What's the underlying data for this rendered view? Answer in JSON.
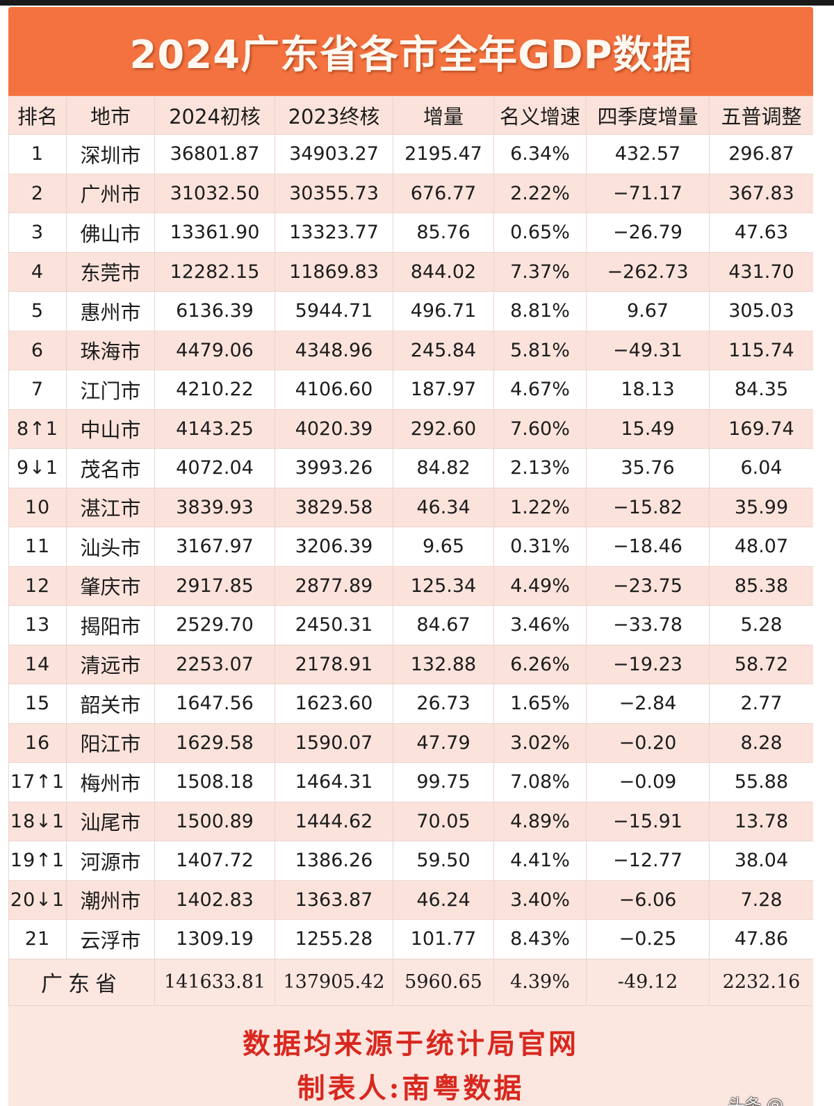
{
  "title": "2024广东省各市全年GDP数据",
  "columns": [
    "排名",
    "地市",
    "2024初核",
    "2023终核",
    "增量",
    "名义增速",
    "四季度增量",
    "五普调整"
  ],
  "rows": [
    {
      "rank": "1",
      "city": "深圳市",
      "gdp2024": "36801.87",
      "gdp2023": "34903.27",
      "increase": "2195.47",
      "growth": "6.34%",
      "q4_increase": "432.57",
      "census_adjust": "296.87"
    },
    {
      "rank": "2",
      "city": "广州市",
      "gdp2024": "31032.50",
      "gdp2023": "30355.73",
      "increase": "676.77",
      "growth": "2.22%",
      "q4_increase": "−71.17",
      "census_adjust": "367.83"
    },
    {
      "rank": "3",
      "city": "佛山市",
      "gdp2024": "13361.90",
      "gdp2023": "13323.77",
      "increase": "85.76",
      "growth": "0.65%",
      "q4_increase": "−26.79",
      "census_adjust": "47.63"
    },
    {
      "rank": "4",
      "city": "东莞市",
      "gdp2024": "12282.15",
      "gdp2023": "11869.83",
      "increase": "844.02",
      "growth": "7.37%",
      "q4_increase": "−262.73",
      "census_adjust": "431.70"
    },
    {
      "rank": "5",
      "city": "惠州市",
      "gdp2024": "6136.39",
      "gdp2023": "5944.71",
      "increase": "496.71",
      "growth": "8.81%",
      "q4_increase": "9.67",
      "census_adjust": "305.03"
    },
    {
      "rank": "6",
      "city": "珠海市",
      "gdp2024": "4479.06",
      "gdp2023": "4348.96",
      "increase": "245.84",
      "growth": "5.81%",
      "q4_increase": "−49.31",
      "census_adjust": "115.74"
    },
    {
      "rank": "7",
      "city": "江门市",
      "gdp2024": "4210.22",
      "gdp2023": "4106.60",
      "increase": "187.97",
      "growth": "4.67%",
      "q4_increase": "18.13",
      "census_adjust": "84.35"
    },
    {
      "rank": "8↑1",
      "city": "中山市",
      "gdp2024": "4143.25",
      "gdp2023": "4020.39",
      "increase": "292.60",
      "growth": "7.60%",
      "q4_increase": "15.49",
      "census_adjust": "169.74"
    },
    {
      "rank": "9↓1",
      "city": "茂名市",
      "gdp2024": "4072.04",
      "gdp2023": "3993.26",
      "increase": "84.82",
      "growth": "2.13%",
      "q4_increase": "35.76",
      "census_adjust": "6.04"
    },
    {
      "rank": "10",
      "city": "湛江市",
      "gdp2024": "3839.93",
      "gdp2023": "3829.58",
      "increase": "46.34",
      "growth": "1.22%",
      "q4_increase": "−15.82",
      "census_adjust": "35.99"
    },
    {
      "rank": "11",
      "city": "汕头市",
      "gdp2024": "3167.97",
      "gdp2023": "3206.39",
      "increase": "9.65",
      "growth": "0.31%",
      "q4_increase": "−18.46",
      "census_adjust": "48.07"
    },
    {
      "rank": "12",
      "city": "肇庆市",
      "gdp2024": "2917.85",
      "gdp2023": "2877.89",
      "increase": "125.34",
      "growth": "4.49%",
      "q4_increase": "−23.75",
      "census_adjust": "85.38"
    },
    {
      "rank": "13",
      "city": "揭阳市",
      "gdp2024": "2529.70",
      "gdp2023": "2450.31",
      "increase": "84.67",
      "growth": "3.46%",
      "q4_increase": "−33.78",
      "census_adjust": "5.28"
    },
    {
      "rank": "14",
      "city": "清远市",
      "gdp2024": "2253.07",
      "gdp2023": "2178.91",
      "increase": "132.88",
      "growth": "6.26%",
      "q4_increase": "−19.23",
      "census_adjust": "58.72"
    },
    {
      "rank": "15",
      "city": "韶关市",
      "gdp2024": "1647.56",
      "gdp2023": "1623.60",
      "increase": "26.73",
      "growth": "1.65%",
      "q4_increase": "−2.84",
      "census_adjust": "2.77"
    },
    {
      "rank": "16",
      "city": "阳江市",
      "gdp2024": "1629.58",
      "gdp2023": "1590.07",
      "increase": "47.79",
      "growth": "3.02%",
      "q4_increase": "−0.20",
      "census_adjust": "8.28"
    },
    {
      "rank": "17↑1",
      "city": "梅州市",
      "gdp2024": "1508.18",
      "gdp2023": "1464.31",
      "increase": "99.75",
      "growth": "7.08%",
      "q4_increase": "−0.09",
      "census_adjust": "55.88"
    },
    {
      "rank": "18↓1",
      "city": "汕尾市",
      "gdp2024": "1500.89",
      "gdp2023": "1444.62",
      "increase": "70.05",
      "growth": "4.89%",
      "q4_increase": "−15.91",
      "census_adjust": "13.78"
    },
    {
      "rank": "19↑1",
      "city": "河源市",
      "gdp2024": "1407.72",
      "gdp2023": "1386.26",
      "increase": "59.50",
      "growth": "4.41%",
      "q4_increase": "−12.77",
      "census_adjust": "38.04"
    },
    {
      "rank": "20↓1",
      "city": "潮州市",
      "gdp2024": "1402.83",
      "gdp2023": "1363.87",
      "increase": "46.24",
      "growth": "3.40%",
      "q4_increase": "−6.06",
      "census_adjust": "7.28"
    },
    {
      "rank": "21",
      "city": "云浮市",
      "gdp2024": "1309.19",
      "gdp2023": "1255.28",
      "increase": "101.77",
      "growth": "8.43%",
      "q4_increase": "−0.25",
      "census_adjust": "47.86"
    }
  ],
  "total": {
    "label": "广东省",
    "gdp2024": "141633.81",
    "gdp2023": "137905.42",
    "increase": "5960.65",
    "growth": "4.39%",
    "q4_increase": "-49.12",
    "census_adjust": "2232.16"
  },
  "footer": {
    "source_note": "数据均来源于统计局官网",
    "author_note": "制表人:南粤数据",
    "watermark": "头条 @..."
  },
  "colors": {
    "banner": "#f4723f",
    "row_alt": "#fbe3dc",
    "footer_text": "#d8281e"
  }
}
